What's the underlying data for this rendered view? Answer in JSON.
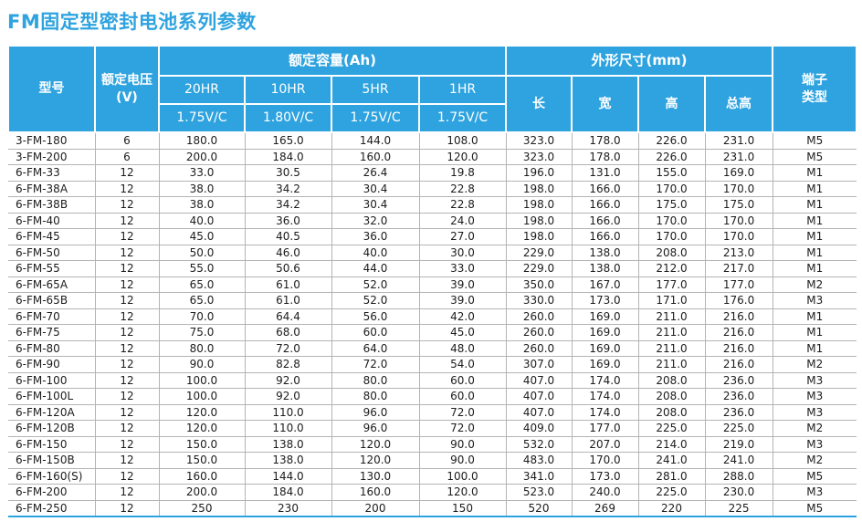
{
  "page_title": "FM固定型密封电池系列参数",
  "colors": {
    "accent_blue": "#2ea3df",
    "header_text": "#ffffff",
    "body_text": "#1c1c1c",
    "grid_line": "#b4b4b4"
  },
  "table": {
    "header": {
      "model": "型号",
      "voltage_line1": "额定电压",
      "voltage_line2": "(V)",
      "capacity_group": "额定容量(Ah)",
      "capacity_cols": [
        {
          "rate": "20HR",
          "cutoff": "1.75V/C"
        },
        {
          "rate": "10HR",
          "cutoff": "1.80V/C"
        },
        {
          "rate": "5HR",
          "cutoff": "1.75V/C"
        },
        {
          "rate": "1HR",
          "cutoff": "1.75V/C"
        }
      ],
      "dimensions_group": "外形尺寸(mm)",
      "dimension_cols": [
        "长",
        "宽",
        "高",
        "总高"
      ],
      "terminal_line1": "端子",
      "terminal_line2": "类型"
    },
    "rows": [
      [
        "3-FM-180",
        "6",
        "180.0",
        "165.0",
        "144.0",
        "108.0",
        "323.0",
        "178.0",
        "226.0",
        "231.0",
        "M5"
      ],
      [
        "3-FM-200",
        "6",
        "200.0",
        "184.0",
        "160.0",
        "120.0",
        "323.0",
        "178.0",
        "226.0",
        "231.0",
        "M5"
      ],
      [
        "6-FM-33",
        "12",
        "33.0",
        "30.5",
        "26.4",
        "19.8",
        "196.0",
        "131.0",
        "155.0",
        "169.0",
        "M1"
      ],
      [
        "6-FM-38A",
        "12",
        "38.0",
        "34.2",
        "30.4",
        "22.8",
        "198.0",
        "166.0",
        "170.0",
        "170.0",
        "M1"
      ],
      [
        "6-FM-38B",
        "12",
        "38.0",
        "34.2",
        "30.4",
        "22.8",
        "198.0",
        "166.0",
        "175.0",
        "175.0",
        "M1"
      ],
      [
        "6-FM-40",
        "12",
        "40.0",
        "36.0",
        "32.0",
        "24.0",
        "198.0",
        "166.0",
        "170.0",
        "170.0",
        "M1"
      ],
      [
        "6-FM-45",
        "12",
        "45.0",
        "40.5",
        "36.0",
        "27.0",
        "198.0",
        "166.0",
        "170.0",
        "170.0",
        "M1"
      ],
      [
        "6-FM-50",
        "12",
        "50.0",
        "46.0",
        "40.0",
        "30.0",
        "229.0",
        "138.0",
        "208.0",
        "213.0",
        "M1"
      ],
      [
        "6-FM-55",
        "12",
        "55.0",
        "50.6",
        "44.0",
        "33.0",
        "229.0",
        "138.0",
        "212.0",
        "217.0",
        "M1"
      ],
      [
        "6-FM-65A",
        "12",
        "65.0",
        "61.0",
        "52.0",
        "39.0",
        "350.0",
        "167.0",
        "177.0",
        "177.0",
        "M2"
      ],
      [
        "6-FM-65B",
        "12",
        "65.0",
        "61.0",
        "52.0",
        "39.0",
        "330.0",
        "173.0",
        "171.0",
        "176.0",
        "M3"
      ],
      [
        "6-FM-70",
        "12",
        "70.0",
        "64.4",
        "56.0",
        "42.0",
        "260.0",
        "169.0",
        "211.0",
        "216.0",
        "M1"
      ],
      [
        "6-FM-75",
        "12",
        "75.0",
        "68.0",
        "60.0",
        "45.0",
        "260.0",
        "169.0",
        "211.0",
        "216.0",
        "M1"
      ],
      [
        "6-FM-80",
        "12",
        "80.0",
        "72.0",
        "64.0",
        "48.0",
        "260.0",
        "169.0",
        "211.0",
        "216.0",
        "M1"
      ],
      [
        "6-FM-90",
        "12",
        "90.0",
        "82.8",
        "72.0",
        "54.0",
        "307.0",
        "169.0",
        "211.0",
        "216.0",
        "M2"
      ],
      [
        "6-FM-100",
        "12",
        "100.0",
        "92.0",
        "80.0",
        "60.0",
        "407.0",
        "174.0",
        "208.0",
        "236.0",
        "M3"
      ],
      [
        "6-FM-100L",
        "12",
        "100.0",
        "92.0",
        "80.0",
        "60.0",
        "407.0",
        "174.0",
        "208.0",
        "236.0",
        "M3"
      ],
      [
        "6-FM-120A",
        "12",
        "120.0",
        "110.0",
        "96.0",
        "72.0",
        "407.0",
        "174.0",
        "208.0",
        "236.0",
        "M3"
      ],
      [
        "6-FM-120B",
        "12",
        "120.0",
        "110.0",
        "96.0",
        "72.0",
        "409.0",
        "177.0",
        "225.0",
        "225.0",
        "M2"
      ],
      [
        "6-FM-150",
        "12",
        "150.0",
        "138.0",
        "120.0",
        "90.0",
        "532.0",
        "207.0",
        "214.0",
        "219.0",
        "M3"
      ],
      [
        "6-FM-150B",
        "12",
        "150.0",
        "138.0",
        "120.0",
        "90.0",
        "483.0",
        "170.0",
        "241.0",
        "241.0",
        "M2"
      ],
      [
        "6-FM-160(S)",
        "12",
        "160.0",
        "144.0",
        "130.0",
        "100.0",
        "341.0",
        "173.0",
        "281.0",
        "288.0",
        "M5"
      ],
      [
        "6-FM-200",
        "12",
        "200.0",
        "184.0",
        "160.0",
        "120.0",
        "523.0",
        "240.0",
        "225.0",
        "230.0",
        "M3"
      ],
      [
        "6-FM-250",
        "12",
        "250",
        "230",
        "200",
        "150",
        "520",
        "269",
        "220",
        "225",
        "M5"
      ]
    ]
  }
}
